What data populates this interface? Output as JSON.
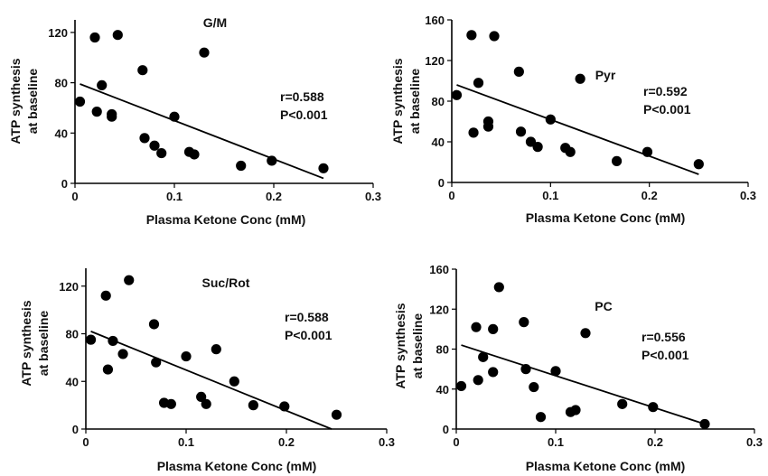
{
  "chart_data": [
    {
      "type": "scatter",
      "title": "G/M",
      "annotation": [
        "r=0.588",
        "P<0.001"
      ],
      "xlabel": "Plasma Ketone Conc (mM)",
      "ylabel": [
        "ATP synthesis",
        "at baseline"
      ],
      "xlim": [
        0,
        0.3
      ],
      "ylim": [
        0,
        130
      ],
      "xticks": [
        0,
        0.1,
        0.2,
        0.3
      ],
      "xticklabels": [
        "0",
        "0.1",
        "0.2",
        "0.3"
      ],
      "yticks": [
        0,
        40,
        80,
        120
      ],
      "yticklabels": [
        "0",
        "40",
        "80",
        "120"
      ],
      "points": [
        [
          0.005,
          65
        ],
        [
          0.02,
          116
        ],
        [
          0.022,
          57
        ],
        [
          0.027,
          78
        ],
        [
          0.037,
          55
        ],
        [
          0.037,
          53
        ],
        [
          0.043,
          118
        ],
        [
          0.068,
          90
        ],
        [
          0.07,
          36
        ],
        [
          0.08,
          30
        ],
        [
          0.087,
          24
        ],
        [
          0.1,
          53
        ],
        [
          0.115,
          25
        ],
        [
          0.12,
          23
        ],
        [
          0.13,
          104
        ],
        [
          0.167,
          14
        ],
        [
          0.198,
          18
        ],
        [
          0.25,
          12
        ]
      ],
      "fit": [
        [
          0.005,
          79
        ],
        [
          0.25,
          4
        ]
      ]
    },
    {
      "type": "scatter",
      "title": "Pyr",
      "annotation": [
        "r=0.592",
        "P<0.001"
      ],
      "xlabel": "Plasma Ketone Conc (mM)",
      "ylabel": [
        "ATP synthesis",
        "at baseline"
      ],
      "xlim": [
        0,
        0.3
      ],
      "ylim": [
        0,
        160
      ],
      "xticks": [
        0,
        0.1,
        0.2,
        0.3
      ],
      "xticklabels": [
        "0",
        "0.1",
        "0.2",
        "0.3"
      ],
      "yticks": [
        0,
        40,
        80,
        120,
        160
      ],
      "yticklabels": [
        "0",
        "40",
        "80",
        "120",
        "160"
      ],
      "points": [
        [
          0.005,
          86
        ],
        [
          0.02,
          145
        ],
        [
          0.022,
          49
        ],
        [
          0.027,
          98
        ],
        [
          0.037,
          60
        ],
        [
          0.037,
          55
        ],
        [
          0.043,
          144
        ],
        [
          0.068,
          109
        ],
        [
          0.07,
          50
        ],
        [
          0.08,
          40
        ],
        [
          0.087,
          35
        ],
        [
          0.1,
          62
        ],
        [
          0.115,
          34
        ],
        [
          0.12,
          30
        ],
        [
          0.13,
          102
        ],
        [
          0.167,
          21
        ],
        [
          0.198,
          30
        ],
        [
          0.25,
          18
        ]
      ],
      "fit": [
        [
          0.005,
          96
        ],
        [
          0.25,
          8
        ]
      ]
    },
    {
      "type": "scatter",
      "title": "Suc/Rot",
      "annotation": [
        "r=0.588",
        "P<0.001"
      ],
      "xlabel": "Plasma Ketone Conc (mM)",
      "ylabel": [
        "ATP synthesis",
        "at baseline"
      ],
      "xlim": [
        0,
        0.3
      ],
      "ylim": [
        0,
        135
      ],
      "xticks": [
        0,
        0.1,
        0.2,
        0.3
      ],
      "xticklabels": [
        "0",
        "0.1",
        "0.2",
        "0.3"
      ],
      "yticks": [
        0,
        40,
        80,
        120
      ],
      "yticklabels": [
        "0",
        "40",
        "80",
        "120"
      ],
      "points": [
        [
          0.005,
          75
        ],
        [
          0.02,
          112
        ],
        [
          0.022,
          50
        ],
        [
          0.027,
          74
        ],
        [
          0.037,
          63
        ],
        [
          0.043,
          125
        ],
        [
          0.068,
          88
        ],
        [
          0.07,
          56
        ],
        [
          0.078,
          22
        ],
        [
          0.085,
          21
        ],
        [
          0.1,
          61
        ],
        [
          0.115,
          27
        ],
        [
          0.12,
          21
        ],
        [
          0.13,
          67
        ],
        [
          0.148,
          40
        ],
        [
          0.167,
          20
        ],
        [
          0.198,
          19
        ],
        [
          0.25,
          12
        ]
      ],
      "fit": [
        [
          0.005,
          82
        ],
        [
          0.245,
          0
        ]
      ]
    },
    {
      "type": "scatter",
      "title": "PC",
      "annotation": [
        "r=0.556",
        "P<0.001"
      ],
      "xlabel": "Plasma Ketone Conc (mM)",
      "ylabel": [
        "ATP synthesis",
        "at baseline"
      ],
      "xlim": [
        0,
        0.3
      ],
      "ylim": [
        0,
        160
      ],
      "xticks": [
        0,
        0.1,
        0.2,
        0.3
      ],
      "xticklabels": [
        "0",
        "0.1",
        "0.2",
        "0.3"
      ],
      "yticks": [
        0,
        40,
        80,
        120,
        160
      ],
      "yticklabels": [
        "0",
        "40",
        "80",
        "120",
        "160"
      ],
      "points": [
        [
          0.005,
          43
        ],
        [
          0.02,
          102
        ],
        [
          0.022,
          49
        ],
        [
          0.027,
          72
        ],
        [
          0.037,
          57
        ],
        [
          0.037,
          100
        ],
        [
          0.043,
          142
        ],
        [
          0.068,
          107
        ],
        [
          0.07,
          60
        ],
        [
          0.078,
          42
        ],
        [
          0.085,
          12
        ],
        [
          0.1,
          58
        ],
        [
          0.115,
          17
        ],
        [
          0.12,
          19
        ],
        [
          0.13,
          96
        ],
        [
          0.167,
          25
        ],
        [
          0.198,
          22
        ],
        [
          0.25,
          5
        ]
      ],
      "fit": [
        [
          0.005,
          84
        ],
        [
          0.25,
          5
        ]
      ]
    }
  ]
}
